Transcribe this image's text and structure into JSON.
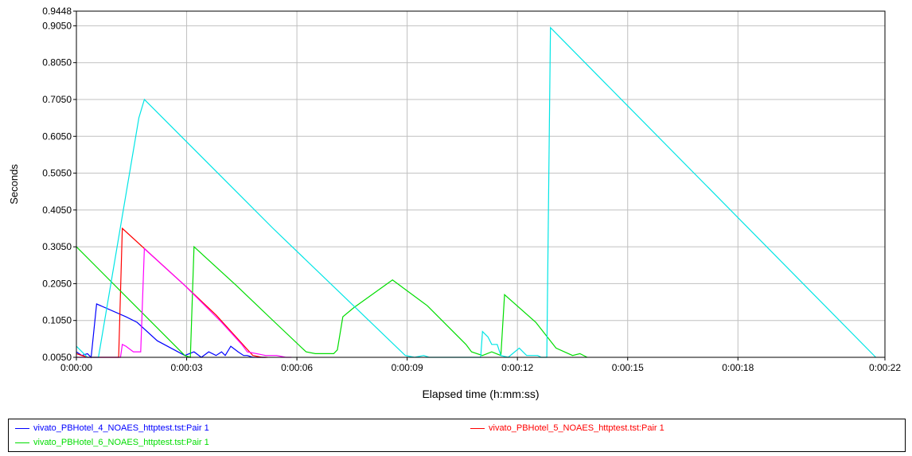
{
  "chart_data": {
    "type": "line",
    "title": "",
    "xlabel": "Elapsed time (h:mm:ss)",
    "ylabel": "Seconds",
    "xlim": [
      0,
      22
    ],
    "ylim": [
      0.005,
      0.9448
    ],
    "x_ticks": [
      {
        "value": 0,
        "label": "0:00:00"
      },
      {
        "value": 3,
        "label": "0:00:03"
      },
      {
        "value": 6,
        "label": "0:00:06"
      },
      {
        "value": 9,
        "label": "0:00:09"
      },
      {
        "value": 12,
        "label": "0:00:12"
      },
      {
        "value": 15,
        "label": "0:00:15"
      },
      {
        "value": 18,
        "label": "0:00:18"
      },
      {
        "value": 22,
        "label": "0:00:22"
      }
    ],
    "y_ticks": [
      {
        "value": 0.005,
        "label": "0.0050"
      },
      {
        "value": 0.105,
        "label": "0.1050"
      },
      {
        "value": 0.205,
        "label": "0.2050"
      },
      {
        "value": 0.305,
        "label": "0.3050"
      },
      {
        "value": 0.405,
        "label": "0.4050"
      },
      {
        "value": 0.505,
        "label": "0.5050"
      },
      {
        "value": 0.605,
        "label": "0.6050"
      },
      {
        "value": 0.705,
        "label": "0.7050"
      },
      {
        "value": 0.805,
        "label": "0.8050"
      },
      {
        "value": 0.905,
        "label": "0.9050"
      },
      {
        "value": 0.9448,
        "label": "0.9448"
      }
    ],
    "x_gridlines": [
      3,
      6,
      9,
      12,
      15,
      18
    ],
    "grid": true,
    "legend_position": "bottom",
    "series": [
      {
        "name": "vivato_PBHotel_4_NOAES_httptest.tst:Pair 1",
        "color": "#0000ff",
        "points": [
          [
            0,
            0.02
          ],
          [
            0.15,
            0.01
          ],
          [
            0.3,
            0.015
          ],
          [
            0.4,
            0.005
          ],
          [
            0.55,
            0.15
          ],
          [
            1.35,
            0.115
          ],
          [
            1.65,
            0.1
          ],
          [
            2.2,
            0.05
          ],
          [
            2.95,
            0.01
          ],
          [
            3.2,
            0.02
          ],
          [
            3.4,
            0.005
          ],
          [
            3.6,
            0.02
          ],
          [
            3.8,
            0.01
          ],
          [
            3.95,
            0.02
          ],
          [
            4.05,
            0.01
          ],
          [
            4.2,
            0.035
          ],
          [
            4.4,
            0.02
          ],
          [
            4.55,
            0.01
          ],
          [
            4.65,
            0.01
          ],
          [
            4.8,
            0.005
          ],
          [
            4.9,
            0.005
          ],
          [
            5.15,
            0.005
          ]
        ]
      },
      {
        "name": "vivato_PBHotel_5_NOAES_httptest.tst:Pair 1",
        "color": "#ff0000",
        "points": [
          [
            0,
            0.015
          ],
          [
            0.3,
            0.005
          ],
          [
            0.65,
            0.005
          ],
          [
            0.85,
            0.005
          ],
          [
            1.15,
            0.005
          ],
          [
            1.25,
            0.355
          ],
          [
            2.95,
            0.2
          ],
          [
            3.8,
            0.12
          ],
          [
            4.8,
            0.01
          ],
          [
            5.05,
            0.005
          ],
          [
            5.2,
            0.005
          ]
        ]
      },
      {
        "name": "vivato_PBHotel_6_NOAES_httptest.tst:Pair 1",
        "color": "#00dd00",
        "points": [
          [
            0,
            0.305
          ],
          [
            2.95,
            0.01
          ],
          [
            3.1,
            0.005
          ],
          [
            3.2,
            0.305
          ],
          [
            4.35,
            0.2
          ],
          [
            5.4,
            0.1
          ],
          [
            6.25,
            0.02
          ],
          [
            6.5,
            0.015
          ],
          [
            7.0,
            0.015
          ],
          [
            7.1,
            0.025
          ],
          [
            7.25,
            0.115
          ],
          [
            7.55,
            0.14
          ],
          [
            8.6,
            0.215
          ],
          [
            9.55,
            0.145
          ],
          [
            10.6,
            0.04
          ],
          [
            10.75,
            0.02
          ],
          [
            11.05,
            0.01
          ],
          [
            11.3,
            0.02
          ],
          [
            11.55,
            0.01
          ],
          [
            11.65,
            0.175
          ],
          [
            12.5,
            0.1
          ],
          [
            13.05,
            0.03
          ],
          [
            13.5,
            0.01
          ],
          [
            13.7,
            0.015
          ],
          [
            13.9,
            0.005
          ]
        ]
      },
      {
        "name": "",
        "color": "#ff00ff",
        "points": [
          [
            0,
            0.005
          ],
          [
            0.8,
            0.005
          ],
          [
            1.2,
            0.005
          ],
          [
            1.25,
            0.04
          ],
          [
            1.35,
            0.035
          ],
          [
            1.55,
            0.02
          ],
          [
            1.75,
            0.02
          ],
          [
            1.85,
            0.3
          ],
          [
            2.95,
            0.2
          ],
          [
            3.95,
            0.1
          ],
          [
            4.5,
            0.04
          ],
          [
            4.65,
            0.02
          ],
          [
            5.15,
            0.01
          ],
          [
            5.45,
            0.01
          ],
          [
            5.7,
            0.005
          ],
          [
            5.85,
            0.005
          ]
        ]
      },
      {
        "name": "",
        "color": "#00e5e5",
        "points": [
          [
            0,
            0.035
          ],
          [
            0.3,
            0.005
          ],
          [
            0.45,
            0.005
          ],
          [
            0.6,
            0.005
          ],
          [
            1.7,
            0.655
          ],
          [
            1.85,
            0.705
          ],
          [
            5.35,
            0.355
          ],
          [
            8.95,
            0.01
          ],
          [
            9.2,
            0.005
          ],
          [
            9.45,
            0.01
          ],
          [
            9.6,
            0.005
          ],
          [
            11.0,
            0.005
          ],
          [
            11.05,
            0.075
          ],
          [
            11.2,
            0.06
          ],
          [
            11.3,
            0.04
          ],
          [
            11.45,
            0.04
          ],
          [
            11.55,
            0.01
          ],
          [
            11.75,
            0.005
          ],
          [
            12.05,
            0.03
          ],
          [
            12.25,
            0.01
          ],
          [
            12.55,
            0.01
          ],
          [
            12.65,
            0.005
          ],
          [
            12.8,
            0.005
          ],
          [
            12.9,
            0.9
          ],
          [
            21.75,
            0.005
          ]
        ]
      }
    ]
  }
}
